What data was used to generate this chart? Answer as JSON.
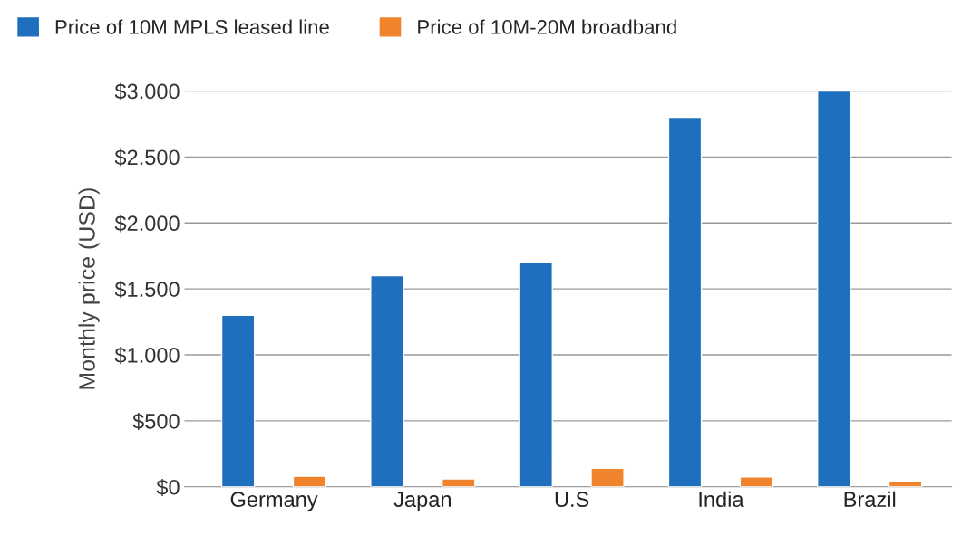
{
  "chart_data": {
    "type": "bar",
    "ylabel": "Monthly price (USD)",
    "categories": [
      "Germany",
      "Japan",
      "U.S",
      "India",
      "Brazil"
    ],
    "series": [
      {
        "name": "Price of 10M MPLS leased line",
        "color": "#1f6fbf",
        "values": [
          1300,
          1600,
          1700,
          2800,
          3000
        ]
      },
      {
        "name": "Price of 10M-20M broadband",
        "color": "#f0842c",
        "values": [
          80,
          60,
          140,
          75,
          40
        ]
      }
    ],
    "ylim": [
      0,
      3000
    ],
    "yticks": [
      {
        "value": 0,
        "label": "$0"
      },
      {
        "value": 500,
        "label": "$500"
      },
      {
        "value": 1000,
        "label": "$1.000"
      },
      {
        "value": 1500,
        "label": "$1.500"
      },
      {
        "value": 2000,
        "label": "$2.000"
      },
      {
        "value": 2500,
        "label": "$2.500"
      },
      {
        "value": 3000,
        "label": "$3.000"
      }
    ],
    "grid": "y",
    "legend": "top left"
  }
}
